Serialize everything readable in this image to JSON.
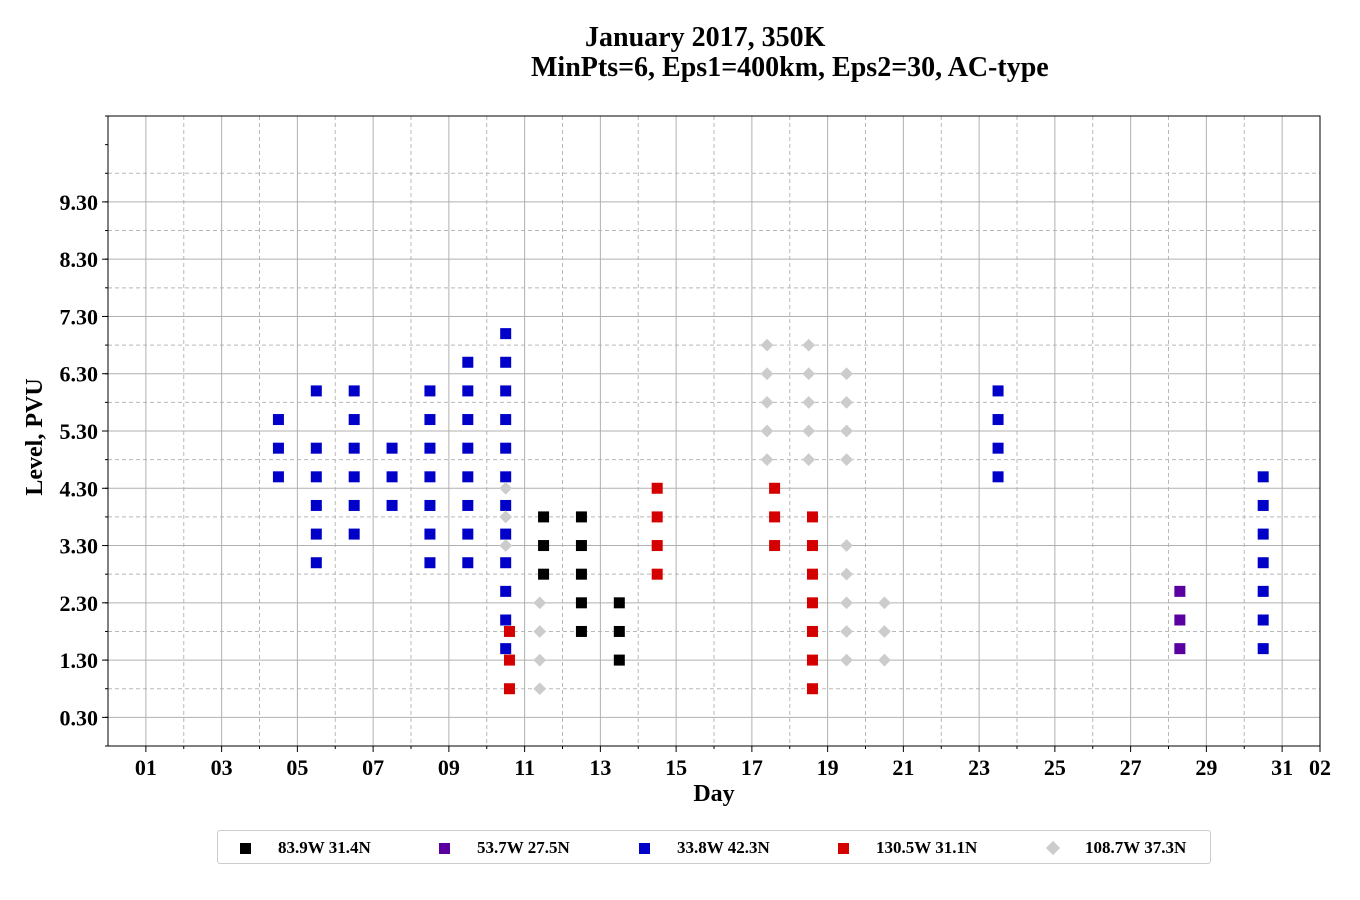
{
  "chart_data": {
    "type": "scatter",
    "title": "January 2017, 350K",
    "subtitle": "MinPts=6, Eps1=400km, Eps2=30, AC-type",
    "xlabel": "Day",
    "ylabel": "Level, PVU",
    "xlim": [
      0,
      32
    ],
    "ylim": [
      -0.2,
      10.8
    ],
    "x_tick_labels": [
      "01",
      "03",
      "05",
      "07",
      "09",
      "11",
      "13",
      "15",
      "17",
      "19",
      "21",
      "23",
      "25",
      "27",
      "29",
      "31",
      "02"
    ],
    "y_tick_labels": [
      "0.30",
      "1.30",
      "2.30",
      "3.30",
      "4.30",
      "5.30",
      "6.30",
      "7.30",
      "8.30",
      "9.30"
    ],
    "grid": true,
    "legend_position": "bottom",
    "series": [
      {
        "name": "83.9W 31.4N",
        "color": "#000000",
        "marker": "square",
        "points": [
          [
            11.5,
            3.8
          ],
          [
            11.5,
            3.3
          ],
          [
            11.5,
            2.8
          ],
          [
            12.5,
            3.8
          ],
          [
            12.5,
            3.3
          ],
          [
            12.5,
            2.8
          ],
          [
            12.5,
            2.3
          ],
          [
            12.5,
            1.8
          ],
          [
            13.5,
            2.3
          ],
          [
            13.5,
            1.8
          ],
          [
            13.5,
            1.3
          ]
        ]
      },
      {
        "name": "53.7W 27.5N",
        "color": "#5a00a0",
        "marker": "square",
        "points": [
          [
            28.3,
            2.5
          ],
          [
            28.3,
            2.0
          ],
          [
            28.3,
            1.5
          ]
        ]
      },
      {
        "name": "33.8W 42.3N",
        "color": "#0000c8",
        "marker": "square",
        "points": [
          [
            4.5,
            5.5
          ],
          [
            4.5,
            5.0
          ],
          [
            4.5,
            4.5
          ],
          [
            5.5,
            6.0
          ],
          [
            5.5,
            5.0
          ],
          [
            5.5,
            4.5
          ],
          [
            5.5,
            4.0
          ],
          [
            5.5,
            3.5
          ],
          [
            5.5,
            3.0
          ],
          [
            6.5,
            6.0
          ],
          [
            6.5,
            5.5
          ],
          [
            6.5,
            5.0
          ],
          [
            6.5,
            4.5
          ],
          [
            6.5,
            4.0
          ],
          [
            6.5,
            3.5
          ],
          [
            7.5,
            5.0
          ],
          [
            7.5,
            4.5
          ],
          [
            7.5,
            4.0
          ],
          [
            8.5,
            6.0
          ],
          [
            8.5,
            5.5
          ],
          [
            8.5,
            5.0
          ],
          [
            8.5,
            4.5
          ],
          [
            8.5,
            4.0
          ],
          [
            8.5,
            3.5
          ],
          [
            8.5,
            3.0
          ],
          [
            9.5,
            6.5
          ],
          [
            9.5,
            6.0
          ],
          [
            9.5,
            5.5
          ],
          [
            9.5,
            5.0
          ],
          [
            9.5,
            4.5
          ],
          [
            9.5,
            4.0
          ],
          [
            9.5,
            3.5
          ],
          [
            9.5,
            3.0
          ],
          [
            10.5,
            7.0
          ],
          [
            10.5,
            6.5
          ],
          [
            10.5,
            6.0
          ],
          [
            10.5,
            5.5
          ],
          [
            10.5,
            5.0
          ],
          [
            10.5,
            4.5
          ],
          [
            10.5,
            4.0
          ],
          [
            10.5,
            3.5
          ],
          [
            10.5,
            3.0
          ],
          [
            10.5,
            2.5
          ],
          [
            10.5,
            2.0
          ],
          [
            10.5,
            1.5
          ],
          [
            23.5,
            6.0
          ],
          [
            23.5,
            5.5
          ],
          [
            23.5,
            5.0
          ],
          [
            23.5,
            4.5
          ],
          [
            30.5,
            4.5
          ],
          [
            30.5,
            4.0
          ],
          [
            30.5,
            3.5
          ],
          [
            30.5,
            3.0
          ],
          [
            30.5,
            2.5
          ],
          [
            30.5,
            2.0
          ],
          [
            30.5,
            1.5
          ]
        ]
      },
      {
        "name": "130.5W 31.1N",
        "color": "#d40000",
        "marker": "square",
        "points": [
          [
            10.6,
            1.8
          ],
          [
            10.6,
            1.3
          ],
          [
            10.6,
            0.8
          ],
          [
            14.5,
            4.3
          ],
          [
            14.5,
            3.8
          ],
          [
            14.5,
            3.3
          ],
          [
            14.5,
            2.8
          ],
          [
            17.6,
            4.3
          ],
          [
            17.6,
            3.8
          ],
          [
            17.6,
            3.3
          ],
          [
            18.6,
            3.8
          ],
          [
            18.6,
            3.3
          ],
          [
            18.6,
            2.8
          ],
          [
            18.6,
            2.3
          ],
          [
            18.6,
            1.8
          ],
          [
            18.6,
            1.3
          ],
          [
            18.6,
            0.8
          ]
        ]
      },
      {
        "name": "108.7W 37.3N",
        "color": "#cccccc",
        "marker": "diamond",
        "points": [
          [
            10.5,
            4.3
          ],
          [
            10.5,
            3.8
          ],
          [
            10.5,
            3.3
          ],
          [
            11.4,
            2.3
          ],
          [
            11.4,
            1.8
          ],
          [
            11.4,
            1.3
          ],
          [
            11.4,
            0.8
          ],
          [
            17.4,
            6.8
          ],
          [
            17.4,
            6.3
          ],
          [
            17.4,
            5.8
          ],
          [
            17.4,
            5.3
          ],
          [
            17.4,
            4.8
          ],
          [
            18.5,
            6.8
          ],
          [
            18.5,
            6.3
          ],
          [
            18.5,
            5.8
          ],
          [
            18.5,
            5.3
          ],
          [
            18.5,
            4.8
          ],
          [
            19.5,
            6.3
          ],
          [
            19.5,
            5.8
          ],
          [
            19.5,
            5.3
          ],
          [
            19.5,
            4.8
          ],
          [
            19.5,
            3.3
          ],
          [
            19.5,
            2.8
          ],
          [
            19.5,
            2.3
          ],
          [
            19.5,
            1.8
          ],
          [
            19.5,
            1.3
          ],
          [
            20.5,
            2.3
          ],
          [
            20.5,
            1.8
          ],
          [
            20.5,
            1.3
          ]
        ]
      }
    ]
  }
}
